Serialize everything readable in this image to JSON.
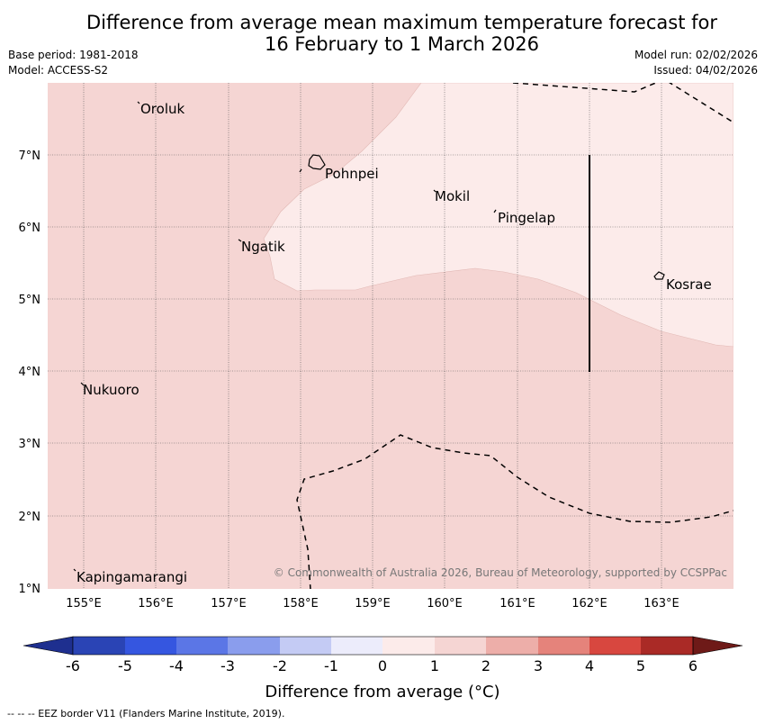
{
  "title_line1": "Difference from average mean maximum temperature forecast for",
  "title_line2": "16 February to 1 March 2026",
  "base_period": "Base period: 1981-2018",
  "model": "Model: ACCESS-S2",
  "model_run": "Model run: 02/02/2026",
  "issued": "Issued: 04/02/2026",
  "places": [
    "Oroluk",
    "Pohnpei",
    "Mokil",
    "Pingelap",
    "Ngatik",
    "Kosrae",
    "Nukuoro",
    "Kapingamarangi"
  ],
  "lat_labels": [
    "7°N",
    "6°N",
    "5°N",
    "4°N",
    "3°N",
    "2°N",
    "1°N"
  ],
  "lon_labels": [
    "155°E",
    "156°E",
    "157°E",
    "158°E",
    "159°E",
    "160°E",
    "161°E",
    "162°E",
    "163°E"
  ],
  "copyright": "© Commonwealth of Australia 2026, Bureau of Meteorology, supported by CCSPPac",
  "colorbar": {
    "ticks": [
      "-6",
      "-5",
      "-4",
      "-3",
      "-2",
      "-1",
      "0",
      "1",
      "2",
      "3",
      "4",
      "5",
      "6"
    ],
    "colors": [
      "#1e2f8f",
      "#2a44b5",
      "#3556e0",
      "#5b76e6",
      "#8a9ded",
      "#c4cbf4",
      "#ececfb",
      "#fcebea",
      "#f5d5d3",
      "#edaea9",
      "#e5837b",
      "#d8473f",
      "#aa2a26",
      "#6e1a18"
    ],
    "label": "Difference from average (°C)"
  },
  "legend_colors": {
    "zone_0_to_1": "#fcebea",
    "zone_1_to_2": "#f5d5d3"
  },
  "footer": "--  --  -- EEZ border V11 (Flanders Marine Institute, 2019)."
}
